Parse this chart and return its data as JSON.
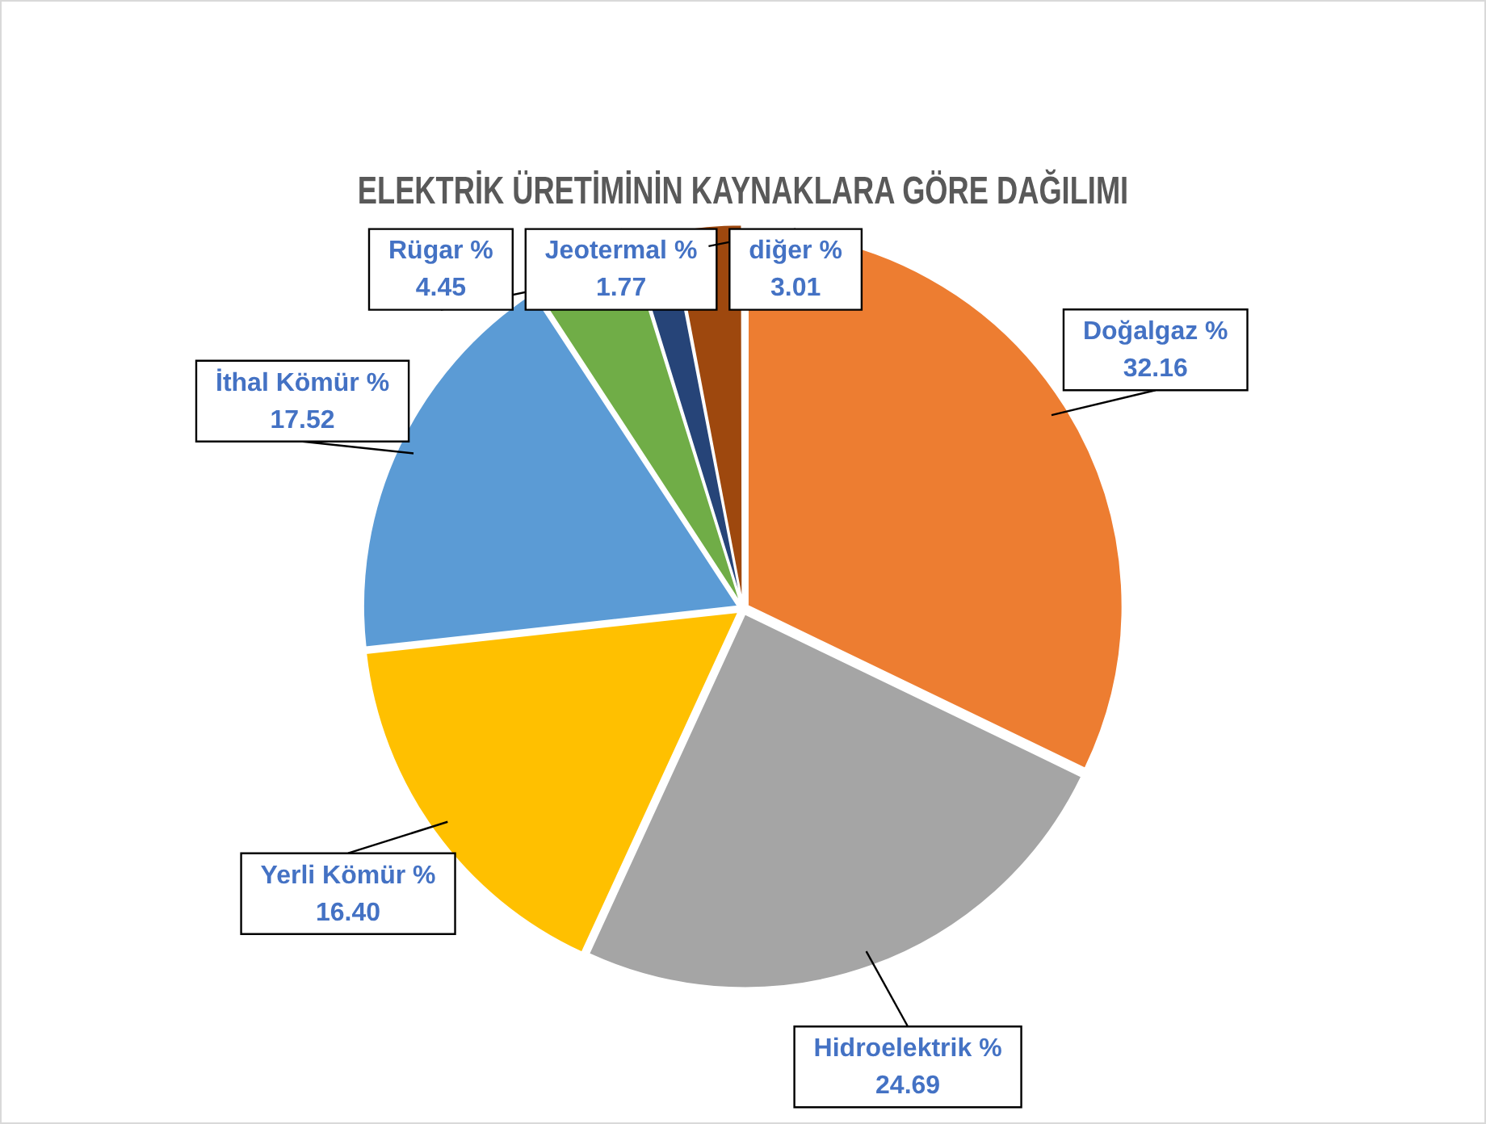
{
  "chart_data": {
    "type": "pie",
    "title": "ELEKTRİK ÜRETİMİNİN KAYNAKLARA GÖRE DAĞILIMI",
    "categories": [
      "Doğalgaz %",
      "Hidroelektrik %",
      "Yerli Kömür %",
      "İthal Kömür %",
      "Rügar %",
      "Jeotermal %",
      "diğer %"
    ],
    "values": [
      32.16,
      24.69,
      16.4,
      17.52,
      4.45,
      1.77,
      3.01
    ],
    "value_labels": [
      "32.16",
      "24.69",
      "16.40",
      "17.52",
      "4.45",
      "1.77",
      "3.01"
    ],
    "colors": [
      "#ed7d31",
      "#a5a5a5",
      "#ffc000",
      "#5b9bd5",
      "#70ad47",
      "#264478",
      "#9e480e"
    ],
    "legend": false
  }
}
